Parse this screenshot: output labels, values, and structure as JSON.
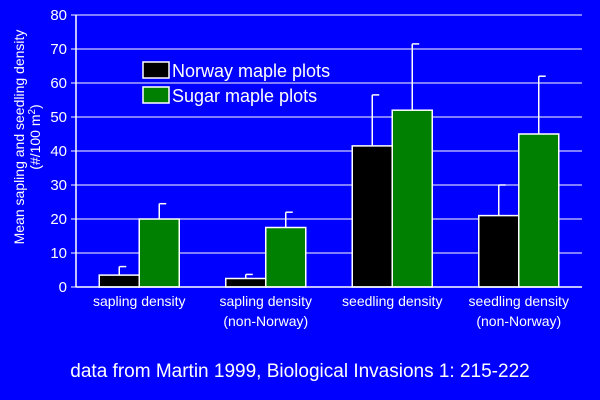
{
  "chart_data": {
    "type": "bar",
    "title": "",
    "ylabel_line1": "Mean sapling and seedling density",
    "ylabel_line2_prefix": "(#/100 m",
    "ylabel_line2_sup": "2",
    "ylabel_line2_suffix": ")",
    "xlabel": "",
    "ylim": [
      0,
      80
    ],
    "yticks": [
      "0",
      "10",
      "20",
      "30",
      "40",
      "50",
      "60",
      "70",
      "80"
    ],
    "grid": true,
    "legend_position": "top-left",
    "categories": [
      [
        "sapling density"
      ],
      [
        "sapling density",
        "(non-Norway)"
      ],
      [
        "seedling density"
      ],
      [
        "seedling density",
        "(non-Norway)"
      ]
    ],
    "series": [
      {
        "name": "Norway maple plots",
        "color": "#000000",
        "values": [
          3.5,
          2.5,
          41.5,
          21
        ],
        "errors": [
          2.5,
          1.2,
          15,
          9
        ]
      },
      {
        "name": "Sugar maple plots",
        "color": "#008000",
        "values": [
          20,
          17.5,
          52,
          45
        ],
        "errors": [
          4.5,
          4.5,
          19.5,
          17
        ]
      }
    ]
  },
  "caption": "data from Martin 1999, Biological Invasions 1: 215-222",
  "colors": {
    "background": "#0000ff",
    "axis": "#ffffff",
    "text": "#ffffff"
  }
}
